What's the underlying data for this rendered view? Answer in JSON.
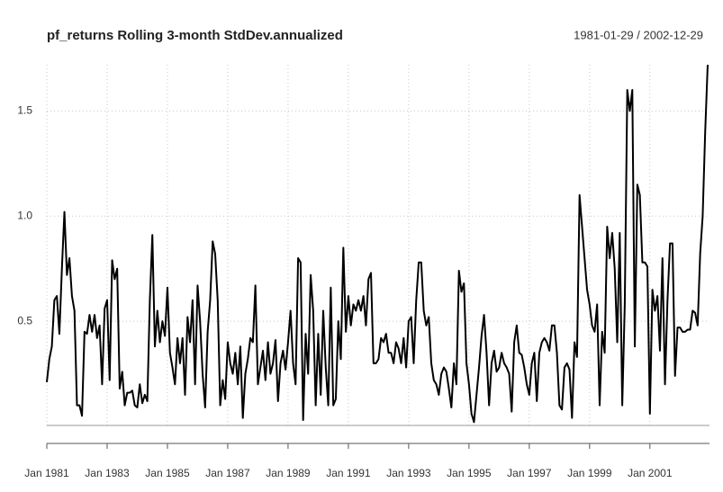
{
  "chart_data": {
    "type": "line",
    "title": "pf_returns Rolling 3-month StdDev.annualized",
    "date_range": "1981-01-29 / 2002-12-29",
    "color": "#000000",
    "grid": true,
    "xlim": [
      "1981-01",
      "2002-12"
    ],
    "ylim": [
      0,
      1.72
    ],
    "yticks": [
      0.5,
      {
        "value": 1,
        "label": "1.0"
      },
      1.5
    ],
    "xticks": [
      {
        "value": "1981-01",
        "label": "Jan 1981"
      },
      {
        "value": "1983-01",
        "label": "Jan 1983"
      },
      {
        "value": "1985-01",
        "label": "Jan 1985"
      },
      {
        "value": "1987-01",
        "label": "Jan 1987"
      },
      {
        "value": "1989-01",
        "label": "Jan 1989"
      },
      {
        "value": "1991-01",
        "label": "Jan 1991"
      },
      {
        "value": "1993-01",
        "label": "Jan 1993"
      },
      {
        "value": "1995-01",
        "label": "Jan 1995"
      },
      {
        "value": "1997-01",
        "label": "Jan 1997"
      },
      {
        "value": "1999-01",
        "label": "Jan 1999"
      },
      {
        "value": "2001-01",
        "label": "Jan 2001"
      }
    ],
    "x": [
      "1981-01",
      "1981-02",
      "1981-03",
      "1981-04",
      "1981-05",
      "1981-06",
      "1981-07",
      "1981-08",
      "1981-09",
      "1981-10",
      "1981-11",
      "1981-12",
      "1982-01",
      "1982-02",
      "1982-03",
      "1982-04",
      "1982-05",
      "1982-06",
      "1982-07",
      "1982-08",
      "1982-09",
      "1982-10",
      "1982-11",
      "1982-12",
      "1983-01",
      "1983-02",
      "1983-03",
      "1983-04",
      "1983-05",
      "1983-06",
      "1983-07",
      "1983-08",
      "1983-09",
      "1983-10",
      "1983-11",
      "1983-12",
      "1984-01",
      "1984-02",
      "1984-03",
      "1984-04",
      "1984-05",
      "1984-06",
      "1984-07",
      "1984-08",
      "1984-09",
      "1984-10",
      "1984-11",
      "1984-12",
      "1985-01",
      "1985-02",
      "1985-03",
      "1985-04",
      "1985-05",
      "1985-06",
      "1985-07",
      "1985-08",
      "1985-09",
      "1985-10",
      "1985-11",
      "1985-12",
      "1986-01",
      "1986-02",
      "1986-03",
      "1986-04",
      "1986-05",
      "1986-06",
      "1986-07",
      "1986-08",
      "1986-09",
      "1986-10",
      "1986-11",
      "1986-12",
      "1987-01",
      "1987-02",
      "1987-03",
      "1987-04",
      "1987-05",
      "1987-06",
      "1987-07",
      "1987-08",
      "1987-09",
      "1987-10",
      "1987-11",
      "1987-12",
      "1988-01",
      "1988-02",
      "1988-03",
      "1988-04",
      "1988-05",
      "1988-06",
      "1988-07",
      "1988-08",
      "1988-09",
      "1988-10",
      "1988-11",
      "1988-12",
      "1989-01",
      "1989-02",
      "1989-03",
      "1989-04",
      "1989-05",
      "1989-06",
      "1989-07",
      "1989-08",
      "1989-09",
      "1989-10",
      "1989-11",
      "1989-12",
      "1990-01",
      "1990-02",
      "1990-03",
      "1990-04",
      "1990-05",
      "1990-06",
      "1990-07",
      "1990-08",
      "1990-09",
      "1990-10",
      "1990-11",
      "1990-12",
      "1991-01",
      "1991-02",
      "1991-03",
      "1991-04",
      "1991-05",
      "1991-06",
      "1991-07",
      "1991-08",
      "1991-09",
      "1991-10",
      "1991-11",
      "1991-12",
      "1992-01",
      "1992-02",
      "1992-03",
      "1992-04",
      "1992-05",
      "1992-06",
      "1992-07",
      "1992-08",
      "1992-09",
      "1992-10",
      "1992-11",
      "1992-12",
      "1993-01",
      "1993-02",
      "1993-03",
      "1993-04",
      "1993-05",
      "1993-06",
      "1993-07",
      "1993-08",
      "1993-09",
      "1993-10",
      "1993-11",
      "1993-12",
      "1994-01",
      "1994-02",
      "1994-03",
      "1994-04",
      "1994-05",
      "1994-06",
      "1994-07",
      "1994-08",
      "1994-09",
      "1994-10",
      "1994-11",
      "1994-12",
      "1995-01",
      "1995-02",
      "1995-03",
      "1995-04",
      "1995-05",
      "1995-06",
      "1995-07",
      "1995-08",
      "1995-09",
      "1995-10",
      "1995-11",
      "1995-12",
      "1996-01",
      "1996-02",
      "1996-03",
      "1996-04",
      "1996-05",
      "1996-06",
      "1996-07",
      "1996-08",
      "1996-09",
      "1996-10",
      "1996-11",
      "1996-12",
      "1997-01",
      "1997-02",
      "1997-03",
      "1997-04",
      "1997-05",
      "1997-06",
      "1997-07",
      "1997-08",
      "1997-09",
      "1997-10",
      "1997-11",
      "1997-12",
      "1998-01",
      "1998-02",
      "1998-03",
      "1998-04",
      "1998-05",
      "1998-06",
      "1998-07",
      "1998-08",
      "1998-09",
      "1998-10",
      "1998-11",
      "1998-12",
      "1999-01",
      "1999-02",
      "1999-03",
      "1999-04",
      "1999-05",
      "1999-06",
      "1999-07",
      "1999-08",
      "1999-09",
      "1999-10",
      "1999-11",
      "1999-12",
      "2000-01",
      "2000-02",
      "2000-03",
      "2000-04",
      "2000-05",
      "2000-06",
      "2000-07",
      "2000-08",
      "2000-09",
      "2000-10",
      "2000-11",
      "2000-12",
      "2001-01",
      "2001-02",
      "2001-03",
      "2001-04",
      "2001-05",
      "2001-06",
      "2001-07",
      "2001-08",
      "2001-09",
      "2001-10",
      "2001-11",
      "2001-12",
      "2002-01",
      "2002-02",
      "2002-03",
      "2002-04",
      "2002-05",
      "2002-06",
      "2002-07",
      "2002-08",
      "2002-09",
      "2002-10",
      "2002-11",
      "2002-12"
    ],
    "values": [
      0.21,
      0.32,
      0.38,
      0.6,
      0.62,
      0.44,
      0.75,
      1.02,
      0.72,
      0.8,
      0.62,
      0.55,
      0.1,
      0.1,
      0.05,
      0.45,
      0.44,
      0.53,
      0.45,
      0.53,
      0.42,
      0.48,
      0.2,
      0.56,
      0.6,
      0.22,
      0.79,
      0.7,
      0.75,
      0.18,
      0.26,
      0.1,
      0.16,
      0.16,
      0.17,
      0.1,
      0.09,
      0.2,
      0.11,
      0.15,
      0.12,
      0.6,
      0.91,
      0.38,
      0.55,
      0.4,
      0.5,
      0.43,
      0.66,
      0.35,
      0.28,
      0.2,
      0.42,
      0.3,
      0.42,
      0.15,
      0.52,
      0.4,
      0.6,
      0.2,
      0.67,
      0.5,
      0.25,
      0.09,
      0.45,
      0.6,
      0.88,
      0.82,
      0.6,
      0.1,
      0.22,
      0.13,
      0.4,
      0.3,
      0.25,
      0.35,
      0.2,
      0.38,
      0.04,
      0.25,
      0.32,
      0.42,
      0.4,
      0.67,
      0.2,
      0.28,
      0.36,
      0.22,
      0.4,
      0.25,
      0.3,
      0.41,
      0.12,
      0.3,
      0.36,
      0.27,
      0.4,
      0.55,
      0.3,
      0.2,
      0.8,
      0.78,
      0.03,
      0.44,
      0.25,
      0.72,
      0.55,
      0.1,
      0.44,
      0.15,
      0.55,
      0.28,
      0.1,
      0.66,
      0.1,
      0.13,
      0.5,
      0.32,
      0.85,
      0.45,
      0.62,
      0.48,
      0.58,
      0.55,
      0.6,
      0.55,
      0.62,
      0.48,
      0.7,
      0.73,
      0.3,
      0.3,
      0.32,
      0.42,
      0.4,
      0.44,
      0.35,
      0.35,
      0.3,
      0.4,
      0.37,
      0.3,
      0.42,
      0.28,
      0.5,
      0.52,
      0.3,
      0.6,
      0.78,
      0.78,
      0.55,
      0.48,
      0.52,
      0.3,
      0.22,
      0.2,
      0.15,
      0.25,
      0.28,
      0.26,
      0.18,
      0.09,
      0.3,
      0.2,
      0.74,
      0.64,
      0.68,
      0.3,
      0.2,
      0.06,
      0.02,
      0.15,
      0.28,
      0.43,
      0.53,
      0.35,
      0.1,
      0.3,
      0.36,
      0.26,
      0.28,
      0.35,
      0.3,
      0.28,
      0.25,
      0.07,
      0.4,
      0.48,
      0.35,
      0.34,
      0.28,
      0.2,
      0.15,
      0.3,
      0.35,
      0.12,
      0.35,
      0.4,
      0.42,
      0.4,
      0.36,
      0.48,
      0.48,
      0.35,
      0.1,
      0.08,
      0.28,
      0.3,
      0.27,
      0.04,
      0.4,
      0.33,
      1.1,
      0.95,
      0.8,
      0.65,
      0.58,
      0.48,
      0.45,
      0.58,
      0.1,
      0.45,
      0.35,
      0.95,
      0.8,
      0.92,
      0.75,
      0.4,
      0.92,
      0.1,
      0.58,
      1.6,
      1.5,
      1.6,
      0.38,
      1.15,
      1.1,
      0.78,
      0.78,
      0.76,
      0.06,
      0.65,
      0.55,
      0.62,
      0.36,
      0.8,
      0.2,
      0.6,
      0.87,
      0.87,
      0.24,
      0.47,
      0.47,
      0.45,
      0.45,
      0.46,
      0.46,
      0.55,
      0.54,
      0.48,
      0.82,
      1.0,
      1.4,
      1.72
    ]
  }
}
